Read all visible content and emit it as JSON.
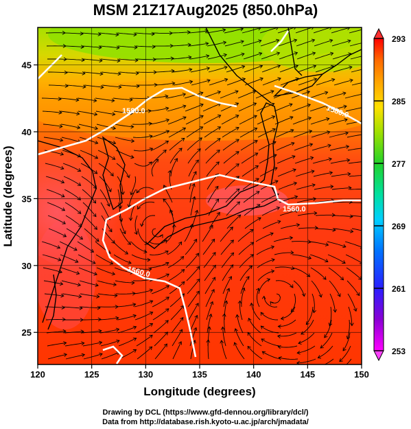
{
  "title": "MSM 21Z17Aug2025 (850.0hPa)",
  "xaxis": {
    "label": "Longitude (degrees)",
    "ticks": [
      120,
      125,
      130,
      135,
      140,
      145,
      150
    ],
    "tick_labels": [
      "120",
      "125",
      "130",
      "135",
      "140",
      "145",
      "150"
    ],
    "range": [
      120,
      150
    ]
  },
  "yaxis": {
    "label": "Latitude  (degrees)",
    "ticks": [
      25,
      30,
      35,
      40,
      45
    ],
    "tick_labels": [
      "25",
      "30",
      "35",
      "40",
      "45"
    ],
    "range": [
      22.6,
      47.8
    ]
  },
  "colorbar": {
    "ticks": [
      253,
      261,
      269,
      277,
      285,
      293
    ],
    "tick_labels": [
      "253",
      "261",
      "269",
      "277",
      "285",
      "293"
    ],
    "range": [
      253,
      293
    ],
    "colors": [
      "#ff00ff",
      "#8a00d4",
      "#2a1fff",
      "#0073ff",
      "#00cfff",
      "#00e0a0",
      "#22d22a",
      "#a0e000",
      "#ffe000",
      "#ffa500",
      "#ff6a00",
      "#ff3000",
      "#ff0000"
    ]
  },
  "contours": [
    {
      "label": "1560.0",
      "note": "geopotential height isoline"
    },
    {
      "label": "1560.0"
    },
    {
      "label": "1560.0"
    },
    {
      "label": "1580.0"
    },
    {
      "label": "1580.0"
    }
  ],
  "colors": {
    "contour": "#ffffff",
    "coast": "#000000",
    "grid": "#000000"
  },
  "footer": {
    "line1": "Drawing by DCL (https://www.gfd-dennou.org/library/dcl/)",
    "line2": "Data from http://database.rish.kyoto-u.ac.jp/arch/jmadata/"
  },
  "chart_data": {
    "type": "heatmap",
    "variable": "temperature with wind streamlines and geopotential height",
    "units": "K",
    "xlim": [
      120,
      150
    ],
    "ylim": [
      22.6,
      47.8
    ],
    "colorscale_range": [
      253,
      293
    ],
    "contour_levels": [
      1560.0,
      1580.0
    ]
  }
}
